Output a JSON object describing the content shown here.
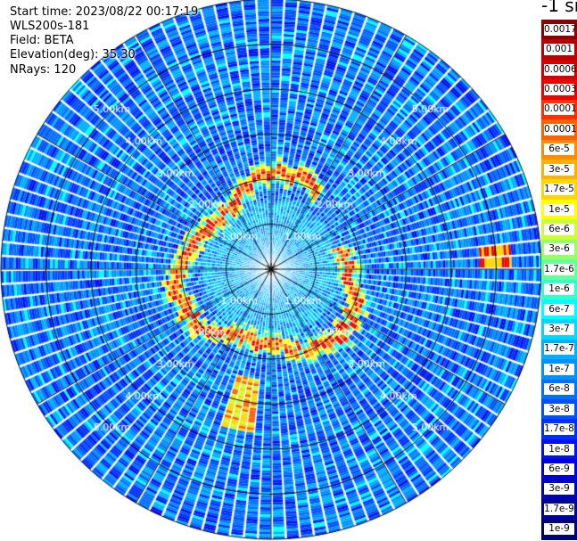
{
  "info": {
    "start_time": "Start time: 2023/08/22 00:17:19",
    "instrument": "WLS200s-181",
    "field": "Field: BETA",
    "elevation": "Elevation(deg): 35.30",
    "nrays": "NRays: 120"
  },
  "colorbar": {
    "unit_title": "-1 sr",
    "levels": [
      {
        "label": "0.0017",
        "color": "#8b0000"
      },
      {
        "label": "0.001",
        "color": "#b80000"
      },
      {
        "label": "0.0006",
        "color": "#d40000"
      },
      {
        "label": "0.0003",
        "color": "#ee0000"
      },
      {
        "label": "0.00017",
        "color": "#ff3000"
      },
      {
        "label": "0.0001",
        "color": "#ff6000"
      },
      {
        "label": "6e-5",
        "color": "#ff8c00"
      },
      {
        "label": "3e-5",
        "color": "#ffb000"
      },
      {
        "label": "1.7e-5",
        "color": "#ffd700"
      },
      {
        "label": "1e-5",
        "color": "#ffff00"
      },
      {
        "label": "6e-6",
        "color": "#ccff33"
      },
      {
        "label": "3e-6",
        "color": "#99ff66"
      },
      {
        "label": "1.7e-6",
        "color": "#66ff99"
      },
      {
        "label": "1e-6",
        "color": "#33ffcc"
      },
      {
        "label": "6e-7",
        "color": "#00ffff"
      },
      {
        "label": "3e-7",
        "color": "#00d8ff"
      },
      {
        "label": "1.7e-7",
        "color": "#00b0ff"
      },
      {
        "label": "1e-7",
        "color": "#0090ff"
      },
      {
        "label": "6e-8",
        "color": "#0070ff"
      },
      {
        "label": "3e-8",
        "color": "#0050ff"
      },
      {
        "label": "1.7e-8",
        "color": "#0030ff"
      },
      {
        "label": "1e-8",
        "color": "#0010f0"
      },
      {
        "label": "6e-9",
        "color": "#0000d8"
      },
      {
        "label": "3e-9",
        "color": "#0000b8"
      },
      {
        "label": "1.7e-9",
        "color": "#000098"
      },
      {
        "label": "1e-9",
        "color": "#000070"
      }
    ]
  },
  "chart_data": {
    "type": "heatmap",
    "projection": "polar (PPI scan)",
    "field": "BETA",
    "nrays": 120,
    "range_rings_km": [
      1.0,
      2.0,
      3.0,
      4.0,
      5.0
    ],
    "ring_labels": [
      "1.00km",
      "2.00km",
      "3.00km",
      "4.00km",
      "5.00km"
    ],
    "max_range_km": 6.0,
    "background_level": "1e-8",
    "features": [
      {
        "description_of_data": "aerosol ring",
        "range_km_min": 1.4,
        "range_km_max": 2.3,
        "level_max": "0.0003"
      },
      {
        "description_of_data": "plume",
        "azimuth_deg": 190,
        "range_km": [
          2.4,
          3.6
        ],
        "level": "1.7e-5"
      },
      {
        "description_of_data": "target",
        "azimuth_deg": 85,
        "range_km": [
          4.6,
          5.3
        ],
        "level": "0.0003"
      }
    ],
    "grid": true
  }
}
